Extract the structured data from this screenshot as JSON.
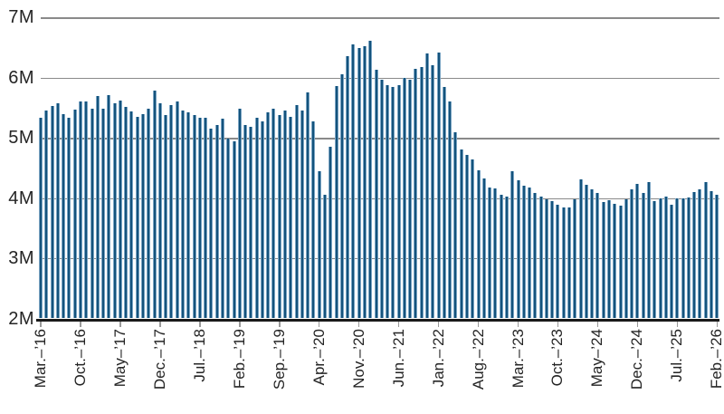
{
  "chart_data": {
    "type": "bar",
    "title": "",
    "unit": "millions (M)",
    "ylim": [
      2,
      7
    ],
    "grid": "horizontal",
    "legend": "none",
    "bar_color": "#14537c",
    "bar_edge_color": "#7aa4c3",
    "gridline_color": "#8a8a8a",
    "axis_line_color": "#1a1a1a",
    "text_color": "#242424",
    "y_ticks": [
      {
        "label": "7M",
        "value": 7
      },
      {
        "label": "6M",
        "value": 6
      },
      {
        "label": "5M",
        "value": 5
      },
      {
        "label": "4M",
        "value": 4
      },
      {
        "label": "3M",
        "value": 3
      },
      {
        "label": "2M",
        "value": 2
      }
    ],
    "x_tick_labels": [
      "Mar.–’16",
      "Oct.–’16",
      "May–’17",
      "Dec.–’17",
      "Jul.–’18",
      "Feb.–’19",
      "Sep.–’19",
      "Apr.–’20",
      "Nov.–’20",
      "Jun.–’21",
      "Jan.–’22",
      "Aug.–’22",
      "Mar.–’23",
      "Oct.–’23",
      "May–’24",
      "Dec.–’24",
      "Jul.–’25",
      "Feb.–’26"
    ],
    "x_tick_every_n_bars": 7,
    "months": [
      "Mar ’16",
      "Apr ’16",
      "May ’16",
      "Jun ’16",
      "Jul ’16",
      "Aug ’16",
      "Sep ’16",
      "Oct ’16",
      "Nov ’16",
      "Dec ’16",
      "Jan ’17",
      "Feb ’17",
      "Mar ’17",
      "Apr ’17",
      "May ’17",
      "Jun ’17",
      "Jul ’17",
      "Aug ’17",
      "Sep ’17",
      "Oct ’17",
      "Nov ’17",
      "Dec ’17",
      "Jan ’18",
      "Feb ’18",
      "Mar ’18",
      "Apr ’18",
      "May ’18",
      "Jun ’18",
      "Jul ’18",
      "Aug ’18",
      "Sep ’18",
      "Oct ’18",
      "Nov ’18",
      "Dec ’18",
      "Jan ’19",
      "Feb ’19",
      "Mar ’19",
      "Apr ’19",
      "May ’19",
      "Jun ’19",
      "Jul ’19",
      "Aug ’19",
      "Sep ’19",
      "Oct ’19",
      "Nov ’19",
      "Dec ’19",
      "Jan ’20",
      "Feb ’20",
      "Mar ’20",
      "Apr ’20",
      "May ’20",
      "Jun ’20",
      "Jul ’20",
      "Aug ’20",
      "Sep ’20",
      "Oct ’20",
      "Nov ’20",
      "Dec ’20",
      "Jan ’21",
      "Feb ’21",
      "Mar ’21",
      "Apr ’21",
      "May ’21",
      "Jun ’21",
      "Jul ’21",
      "Aug ’21",
      "Sep ’21",
      "Oct ’21",
      "Nov ’21",
      "Dec ’21",
      "Jan ’22",
      "Feb ’22",
      "Mar ’22",
      "Apr ’22",
      "May ’22",
      "Jun ’22",
      "Jul ’22",
      "Aug ’22",
      "Sep ’22",
      "Oct ’22",
      "Nov ’22",
      "Dec ’22",
      "Jan ’23",
      "Feb ’23",
      "Mar ’23",
      "Apr ’23",
      "May ’23",
      "Jun ’23",
      "Jul ’23",
      "Aug ’23",
      "Sep ’23",
      "Oct ’23",
      "Nov ’23",
      "Dec ’23",
      "Jan ’24",
      "Feb ’24",
      "Mar ’24",
      "Apr ’24",
      "May ’24",
      "Jun ’24",
      "Jul ’24",
      "Aug ’24",
      "Sep ’24",
      "Oct ’24",
      "Nov ’24",
      "Dec ’24",
      "Jan ’25",
      "Feb ’25",
      "Mar ’25",
      "Apr ’25",
      "May ’25",
      "Jun ’25",
      "Jul ’25",
      "Aug ’25",
      "Sep ’25",
      "Oct ’25",
      "Nov ’25",
      "Dec ’25",
      "Jan ’26",
      "Feb ’26"
    ],
    "values": [
      5.33,
      5.45,
      5.53,
      5.57,
      5.39,
      5.33,
      5.47,
      5.6,
      5.61,
      5.49,
      5.69,
      5.48,
      5.71,
      5.57,
      5.62,
      5.52,
      5.44,
      5.35,
      5.39,
      5.48,
      5.78,
      5.57,
      5.38,
      5.54,
      5.6,
      5.46,
      5.43,
      5.38,
      5.34,
      5.34,
      5.15,
      5.22,
      5.32,
      4.99,
      4.94,
      5.48,
      5.21,
      5.19,
      5.34,
      5.27,
      5.42,
      5.49,
      5.38,
      5.46,
      5.35,
      5.54,
      5.46,
      5.76,
      5.27,
      4.44,
      4.06,
      4.85,
      5.86,
      6.05,
      6.35,
      6.56,
      6.49,
      6.53,
      6.61,
      6.13,
      5.96,
      5.88,
      5.85,
      5.87,
      5.99,
      5.96,
      6.15,
      6.18,
      6.4,
      6.2,
      6.41,
      5.85,
      5.6,
      5.1,
      4.81,
      4.71,
      4.64,
      4.46,
      4.33,
      4.18,
      4.16,
      4.05,
      4.02,
      4.44,
      4.29,
      4.2,
      4.18,
      4.08,
      4.02,
      3.98,
      3.95,
      3.89,
      3.85,
      3.84,
      3.98,
      4.31,
      4.22,
      4.15,
      4.09,
      3.94,
      3.97,
      3.91,
      3.88,
      3.98,
      4.15,
      4.24,
      4.08,
      4.26,
      3.95,
      3.99,
      4.02,
      3.89,
      3.99,
      3.99,
      4.01,
      4.1,
      4.15,
      4.27,
      4.11,
      4.05
    ]
  }
}
